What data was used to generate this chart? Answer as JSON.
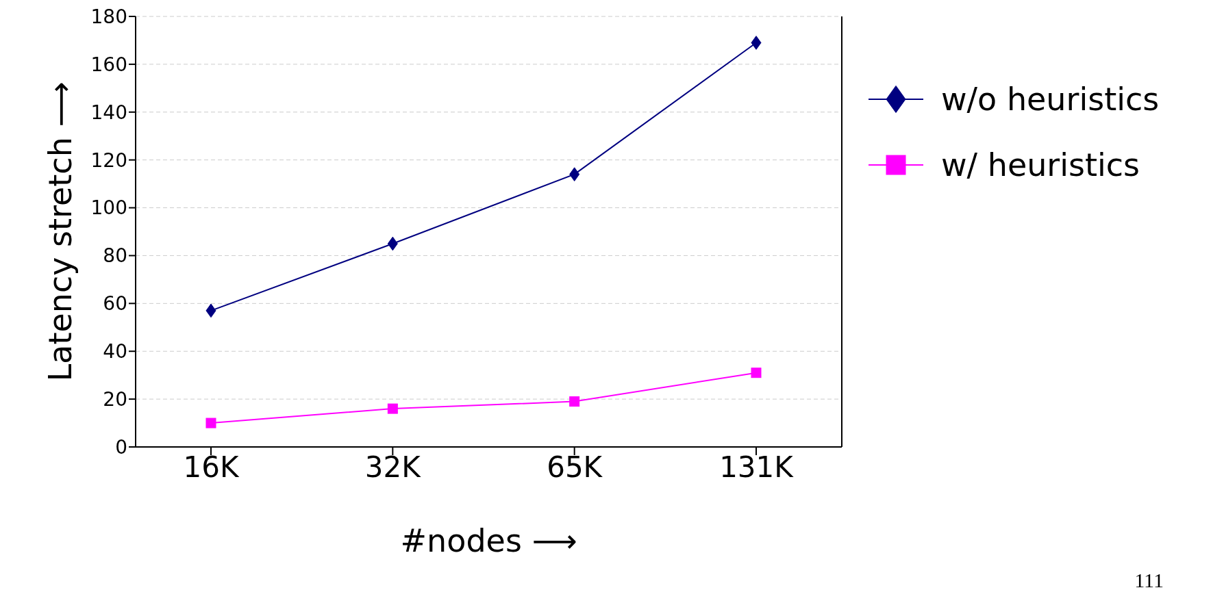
{
  "chart_data": {
    "type": "line",
    "xlabel": "#nodes ⟶",
    "ylabel": "Latency stretch ⟶",
    "categories": [
      "16K",
      "32K",
      "65K",
      "131K"
    ],
    "series": [
      {
        "name": "w/o heuristics",
        "color": "#000080",
        "marker": "diamond",
        "values": [
          57,
          85,
          114,
          169
        ]
      },
      {
        "name": "w/ heuristics",
        "color": "#ff00ff",
        "marker": "square",
        "values": [
          10,
          16,
          19,
          31
        ]
      }
    ],
    "ylim": [
      0,
      180
    ],
    "yticks": [
      0,
      20,
      40,
      60,
      80,
      100,
      120,
      140,
      160,
      180
    ],
    "grid": "y",
    "legend": "right",
    "annotations": [
      "111"
    ]
  }
}
